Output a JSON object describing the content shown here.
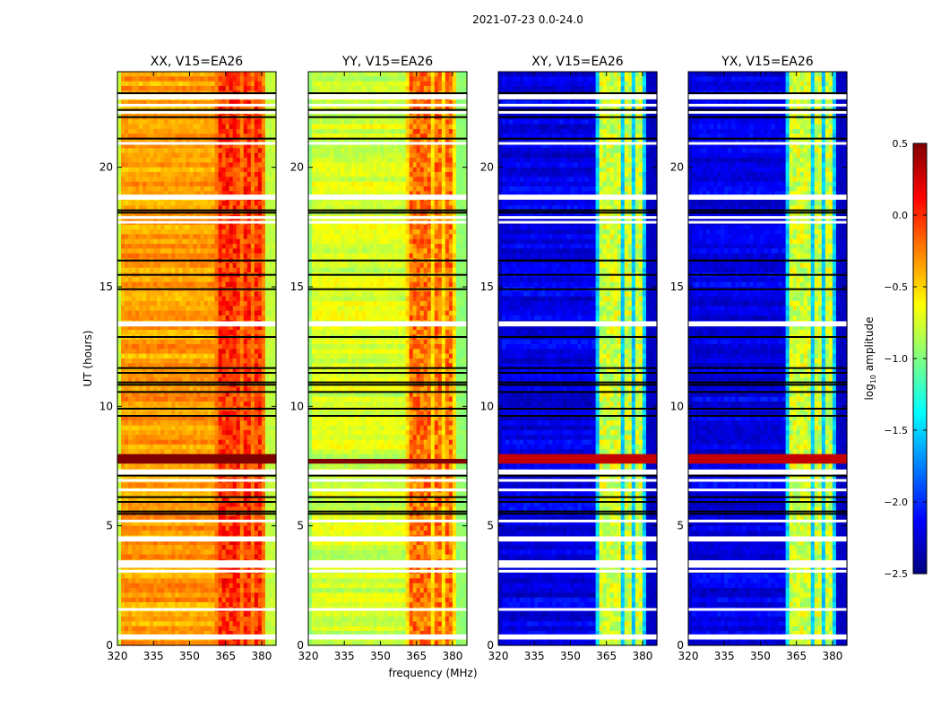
{
  "figure": {
    "suptitle": "2021-07-23 0.0-24.0",
    "xlabel": "frequency (MHz)",
    "ylabel": "UT (hours)"
  },
  "colorbar": {
    "label_prefix": "log",
    "label_sub": "10",
    "label_suffix": " amplitude",
    "vmin": -2.5,
    "vmax": 0.5,
    "ticks": [
      "0.5",
      "0.0",
      "−0.5",
      "−1.0",
      "−1.5",
      "−2.0",
      "−2.5"
    ],
    "tick_values": [
      0.5,
      0.0,
      -0.5,
      -1.0,
      -1.5,
      -2.0,
      -2.5
    ],
    "colormap": "jet"
  },
  "chart_data": [
    {
      "type": "heatmap",
      "title": "XX, V15=EA26",
      "xlabel": "",
      "ylabel": "UT (hours)",
      "xlim": [
        320,
        386
      ],
      "ylim": [
        0,
        24
      ],
      "xticks": [
        320,
        335,
        350,
        365,
        380
      ],
      "xtick_labels": [
        "320",
        "335",
        "350",
        "365",
        "380"
      ],
      "yticks": [
        0,
        5,
        10,
        15,
        20
      ],
      "ytick_labels": [
        "0",
        "5",
        "10",
        "15",
        "20"
      ],
      "background_level": -0.35,
      "band_level": -0.1,
      "band_freqs_MHz": [
        [
          362,
          366
        ],
        [
          367,
          371
        ],
        [
          373,
          376
        ],
        [
          377,
          380
        ]
      ],
      "edge_level": -0.8,
      "rfi_row_hours": [
        7.6,
        7.9
      ],
      "rfi_level": 0.5
    },
    {
      "type": "heatmap",
      "title": "YY, V15=EA26",
      "xlabel": "frequency (MHz)",
      "ylabel": "",
      "xlim": [
        320,
        386
      ],
      "ylim": [
        0,
        24
      ],
      "xticks": [
        320,
        335,
        350,
        365,
        380
      ],
      "xtick_labels": [
        "320",
        "335",
        "350",
        "365",
        "380"
      ],
      "yticks": [
        0,
        5,
        10,
        15,
        20
      ],
      "ytick_labels": [
        "0",
        "5",
        "10",
        "15",
        "20"
      ],
      "background_level": -0.75,
      "band_level": -0.3,
      "band_freqs_MHz": [
        [
          362,
          366
        ],
        [
          367,
          371
        ],
        [
          373,
          376
        ],
        [
          377,
          380
        ]
      ],
      "edge_level": -0.95,
      "rfi_row_hours": [
        7.6,
        7.8
      ],
      "rfi_level": 0.5
    },
    {
      "type": "heatmap",
      "title": "XY, V15=EA26",
      "xlabel": "",
      "ylabel": "",
      "xlim": [
        320,
        386
      ],
      "ylim": [
        0,
        24
      ],
      "xticks": [
        320,
        335,
        350,
        365,
        380
      ],
      "xtick_labels": [
        "320",
        "335",
        "350",
        "365",
        "380"
      ],
      "yticks": [
        0,
        5,
        10,
        15,
        20
      ],
      "ytick_labels": [
        "0",
        "5",
        "10",
        "15",
        "20"
      ],
      "background_level": -2.2,
      "band_level": -0.85,
      "band_freqs_MHz": [
        [
          362,
          366
        ],
        [
          367,
          371
        ],
        [
          373,
          376
        ],
        [
          377,
          380
        ]
      ],
      "edge_level": -2.3,
      "rfi_row_hours": [
        7.6,
        7.9
      ],
      "rfi_level": 0.3
    },
    {
      "type": "heatmap",
      "title": "YX, V15=EA26",
      "xlabel": "",
      "ylabel": "",
      "xlim": [
        320,
        386
      ],
      "ylim": [
        0,
        24
      ],
      "xticks": [
        320,
        335,
        350,
        365,
        380
      ],
      "xtick_labels": [
        "320",
        "335",
        "350",
        "365",
        "380"
      ],
      "yticks": [
        0,
        5,
        10,
        15,
        20
      ],
      "ytick_labels": [
        "0",
        "5",
        "10",
        "15",
        "20"
      ],
      "background_level": -2.2,
      "band_level": -0.85,
      "band_freqs_MHz": [
        [
          362,
          366
        ],
        [
          367,
          371
        ],
        [
          373,
          376
        ],
        [
          377,
          380
        ]
      ],
      "edge_level": -2.3,
      "rfi_row_hours": [
        7.6,
        7.9
      ],
      "rfi_level": 0.3
    }
  ],
  "flagged_white_rows_hours": [
    0.3,
    0.4,
    1.5,
    3.1,
    3.3,
    3.4,
    3.5,
    4.4,
    4.5,
    5.2,
    6.5,
    6.9,
    7.2,
    7.3,
    13.4,
    13.5,
    18.7,
    18.8,
    17.9,
    17.7,
    22.9,
    23.0,
    22.6,
    22.3,
    21.0
  ],
  "flagged_black_rows_hours": [
    5.5,
    5.6,
    6.2,
    6.0,
    7.1,
    9.6,
    9.9,
    10.6,
    10.9,
    11.0,
    11.4,
    11.6,
    12.9,
    14.9,
    15.5,
    16.1,
    18.1,
    18.2,
    21.2,
    22.1,
    22.4,
    23.1
  ]
}
